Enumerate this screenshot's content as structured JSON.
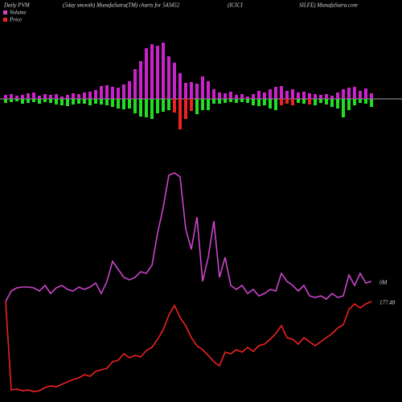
{
  "header": {
    "left": "Daily PVM",
    "center": "(5day smooth) MunafaSutra(TM) charts for 543452",
    "right_a": "(ICICI",
    "right_b": "SILFE) MunafaSutra.com"
  },
  "chart_data": [
    {
      "type": "diverging-bar",
      "ylim": [
        -80,
        80
      ],
      "series": [
        {
          "color": "#cc22cc",
          "values": [
            5,
            6,
            4,
            5,
            7,
            8,
            4,
            6,
            5,
            6,
            3,
            5,
            7,
            6,
            8,
            9,
            11,
            16,
            17,
            15,
            14,
            18,
            22,
            37,
            47,
            63,
            68,
            66,
            70,
            53,
            45,
            32,
            20,
            21,
            19,
            28,
            22,
            12,
            8,
            7,
            9,
            5,
            6,
            3,
            6,
            10,
            8,
            12,
            15,
            16,
            10,
            12,
            8,
            9,
            7,
            6,
            5,
            6,
            4,
            8,
            12,
            14,
            15,
            10,
            13,
            7
          ]
        },
        {
          "values": [
            -5,
            -4,
            -3,
            -6,
            -5,
            -4,
            -6,
            -4,
            -5,
            -7,
            -8,
            -9,
            -7,
            -6,
            -6,
            -8,
            -6,
            -7,
            -8,
            -10,
            -12,
            -13,
            -12,
            -18,
            -22,
            -23,
            -25,
            -18,
            -16,
            -14,
            -17,
            -38,
            -25,
            -15,
            -19,
            -14,
            -14,
            -6,
            -6,
            -5,
            -4,
            -5,
            -4,
            -5,
            -8,
            -9,
            -8,
            -12,
            -14,
            -8,
            -6,
            -8,
            -5,
            -6,
            -7,
            -8,
            -5,
            -7,
            -10,
            -12,
            -23,
            -14,
            -8,
            -5,
            -6,
            -10
          ],
          "colors": [
            "#22dd22",
            "#22dd22",
            "#22dd22",
            "#22dd22",
            "#22dd22",
            "#22dd22",
            "#22dd22",
            "#22dd22",
            "#22dd22",
            "#22dd22",
            "#22dd22",
            "#22dd22",
            "#22dd22",
            "#22dd22",
            "#22dd22",
            "#22dd22",
            "#22dd22",
            "#22dd22",
            "#22dd22",
            "#22dd22",
            "#22dd22",
            "#22dd22",
            "#22dd22",
            "#22dd22",
            "#22dd22",
            "#22dd22",
            "#22dd22",
            "#22dd22",
            "#22dd22",
            "#22dd22",
            "#ee2222",
            "#ee2222",
            "#ee2222",
            "#ee2222",
            "#22dd22",
            "#22dd22",
            "#22dd22",
            "#22dd22",
            "#22dd22",
            "#22dd22",
            "#22dd22",
            "#22dd22",
            "#22dd22",
            "#22dd22",
            "#22dd22",
            "#22dd22",
            "#22dd22",
            "#22dd22",
            "#22dd22",
            "#ee2222",
            "#ee2222",
            "#ee2222",
            "#22dd22",
            "#22dd22",
            "#ee2222",
            "#22dd22",
            "#22dd22",
            "#22dd22",
            "#22dd22",
            "#22dd22",
            "#22dd22",
            "#22dd22",
            "#22dd22",
            "#22dd22",
            "#22dd22",
            "#22dd22"
          ]
        }
      ]
    },
    {
      "type": "line",
      "ylim": [
        0,
        320
      ],
      "series": [
        {
          "name": "Volume",
          "color": "#cc44cc",
          "end_label": "0M",
          "values": [
            125,
            138,
            142,
            143,
            143,
            142,
            138,
            145,
            135,
            142,
            145,
            140,
            138,
            143,
            140,
            143,
            148,
            135,
            150,
            175,
            165,
            155,
            152,
            155,
            162,
            160,
            170,
            210,
            242,
            282,
            285,
            280,
            215,
            190,
            230,
            150,
            180,
            225,
            155,
            180,
            145,
            140,
            145,
            135,
            140,
            132,
            135,
            140,
            138,
            160,
            150,
            145,
            138,
            145,
            132,
            130,
            132,
            128,
            135,
            130,
            132,
            158,
            145,
            160,
            148,
            150
          ]
        },
        {
          "name": "Price",
          "color": "#ee2222",
          "end_label": "177.48",
          "values": [
            125,
            15,
            16,
            14,
            15,
            13,
            14,
            18,
            20,
            19,
            22,
            25,
            28,
            30,
            34,
            32,
            38,
            40,
            42,
            50,
            52,
            60,
            55,
            58,
            56,
            64,
            68,
            78,
            90,
            108,
            120,
            105,
            95,
            80,
            70,
            65,
            58,
            50,
            45,
            62,
            60,
            65,
            62,
            68,
            63,
            70,
            72,
            78,
            85,
            95,
            80,
            78,
            72,
            80,
            75,
            70,
            75,
            80,
            85,
            92,
            96,
            115,
            122,
            117,
            122,
            125
          ]
        }
      ]
    }
  ]
}
